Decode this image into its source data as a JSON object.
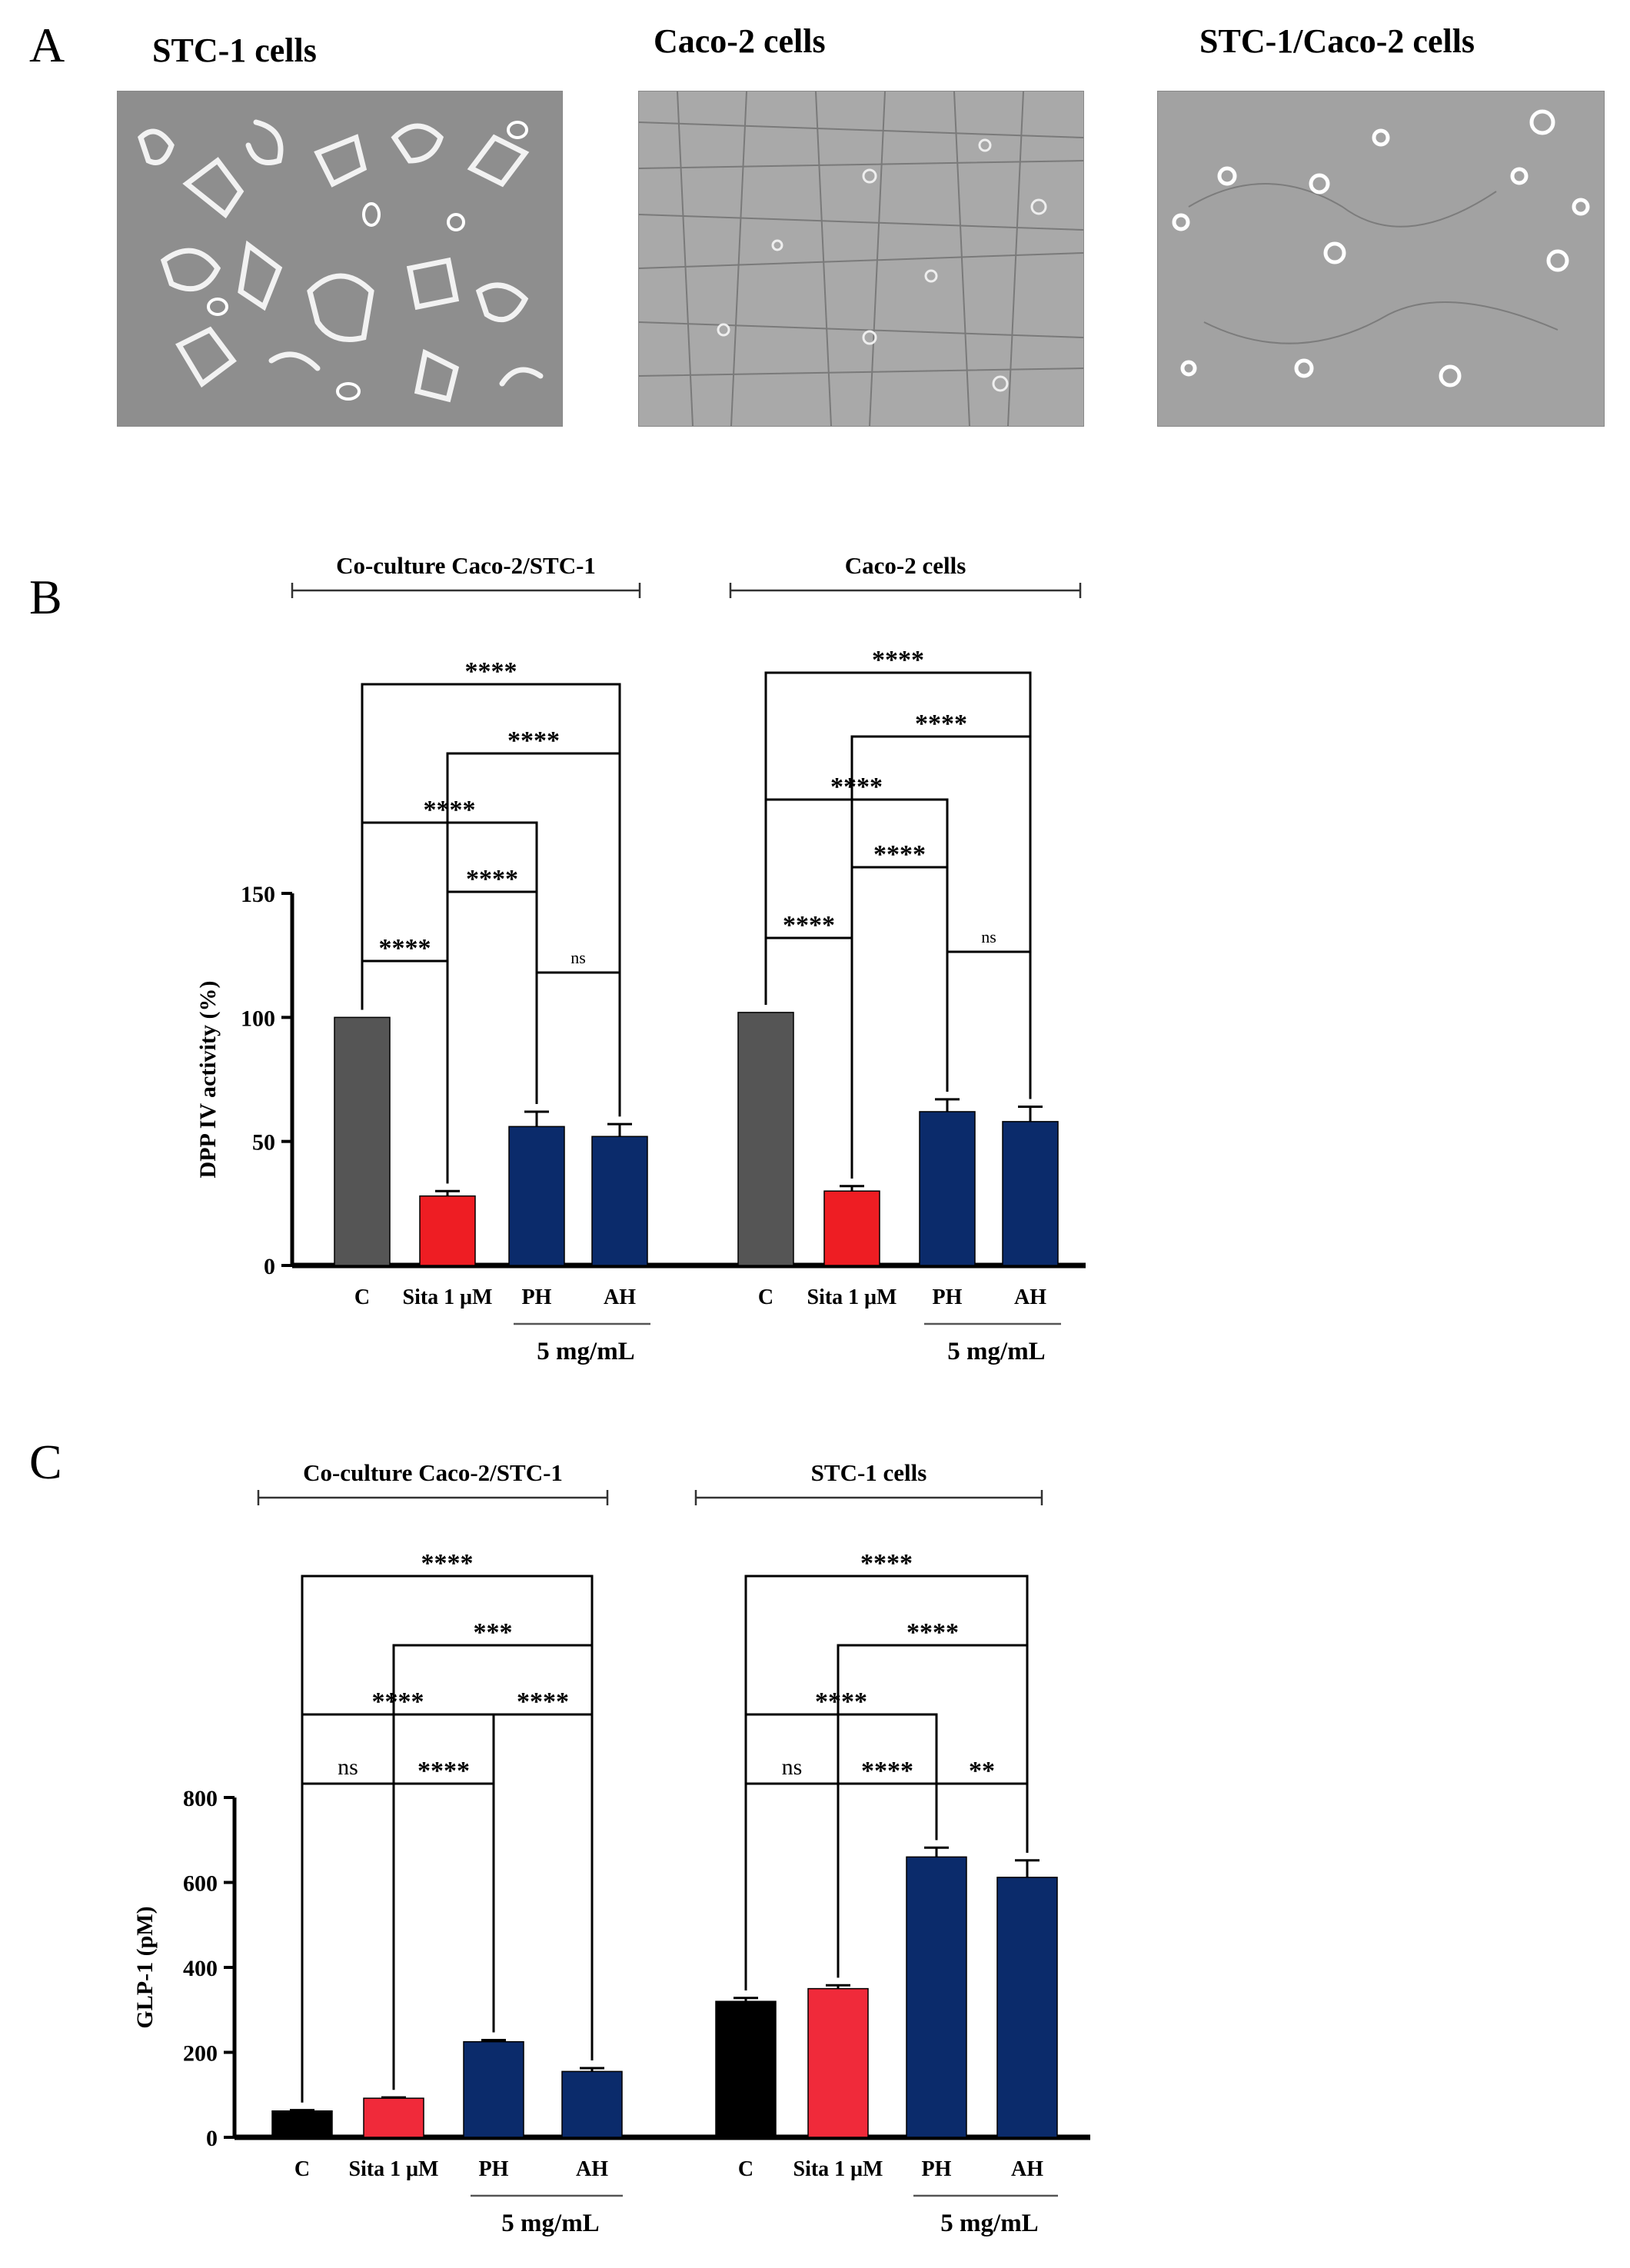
{
  "panel_labels": {
    "a": "A",
    "b": "B",
    "c": "C"
  },
  "micrographs": [
    {
      "title": "STC-1 cells"
    },
    {
      "title": "Caco-2 cells"
    },
    {
      "title": "STC-1/Caco-2 cells"
    }
  ],
  "colors": {
    "control_b": "#555555",
    "control_c": "#000000",
    "sita": "#ee1d23",
    "sita_c": "#f02a3a",
    "hydrolysate": "#0b2b6b",
    "axis": "#000000"
  },
  "chart_data": [
    {
      "id": "B",
      "type": "bar",
      "ylabel": "DPP IV activity (%)",
      "ylim": [
        0,
        150
      ],
      "yticks": [
        0,
        50,
        100,
        150
      ],
      "categories": [
        "C",
        "Sita 1 μM",
        "PH",
        "AH"
      ],
      "dose_label": "5 mg/mL",
      "groups": [
        {
          "name": "Co-culture Caco-2/STC-1",
          "values": [
            100,
            28,
            56,
            52
          ],
          "errors": [
            0,
            2,
            6,
            5
          ],
          "comparisons": [
            {
              "from": 0,
              "to": 3,
              "label": "****"
            },
            {
              "from": 1,
              "to": 3,
              "label": "****"
            },
            {
              "from": 0,
              "to": 2,
              "label": "****"
            },
            {
              "from": 1,
              "to": 2,
              "label": "****"
            },
            {
              "from": 0,
              "to": 1,
              "label": "****"
            },
            {
              "from": 2,
              "to": 3,
              "label": "ns"
            }
          ]
        },
        {
          "name": "Caco-2 cells",
          "values": [
            102,
            30,
            62,
            58
          ],
          "errors": [
            0,
            2,
            5,
            6
          ],
          "comparisons": [
            {
              "from": 0,
              "to": 3,
              "label": "****"
            },
            {
              "from": 1,
              "to": 3,
              "label": "****"
            },
            {
              "from": 0,
              "to": 2,
              "label": "****"
            },
            {
              "from": 1,
              "to": 2,
              "label": "****"
            },
            {
              "from": 0,
              "to": 1,
              "label": "****"
            },
            {
              "from": 2,
              "to": 3,
              "label": "ns"
            }
          ]
        }
      ]
    },
    {
      "id": "C",
      "type": "bar",
      "ylabel": "GLP-1 (pM)",
      "ylim": [
        0,
        800
      ],
      "yticks": [
        0,
        200,
        400,
        600,
        800
      ],
      "categories": [
        "C",
        "Sita 1 μM",
        "PH",
        "AH"
      ],
      "dose_label": "5 mg/mL",
      "groups": [
        {
          "name": "Co-culture Caco-2/STC-1",
          "values": [
            62,
            92,
            225,
            155
          ],
          "errors": [
            2,
            2,
            4,
            8
          ],
          "comparisons": [
            {
              "from": 0,
              "to": 3,
              "label": "****"
            },
            {
              "from": 1,
              "to": 3,
              "label": "***"
            },
            {
              "from": 0,
              "to": 2,
              "label": "****"
            },
            {
              "from": 2,
              "to": 3,
              "label": "****"
            },
            {
              "from": 0,
              "to": 1,
              "label": "ns"
            },
            {
              "from": 1,
              "to": 2,
              "label": "****"
            }
          ]
        },
        {
          "name": "STC-1 cells",
          "values": [
            320,
            350,
            660,
            612
          ],
          "errors": [
            8,
            8,
            22,
            40
          ],
          "comparisons": [
            {
              "from": 0,
              "to": 3,
              "label": "****"
            },
            {
              "from": 1,
              "to": 3,
              "label": "****"
            },
            {
              "from": 0,
              "to": 2,
              "label": "****"
            },
            {
              "from": 0,
              "to": 1,
              "label": "ns"
            },
            {
              "from": 1,
              "to": 2,
              "label": "****"
            },
            {
              "from": 2,
              "to": 3,
              "label": "**"
            }
          ]
        }
      ]
    }
  ]
}
